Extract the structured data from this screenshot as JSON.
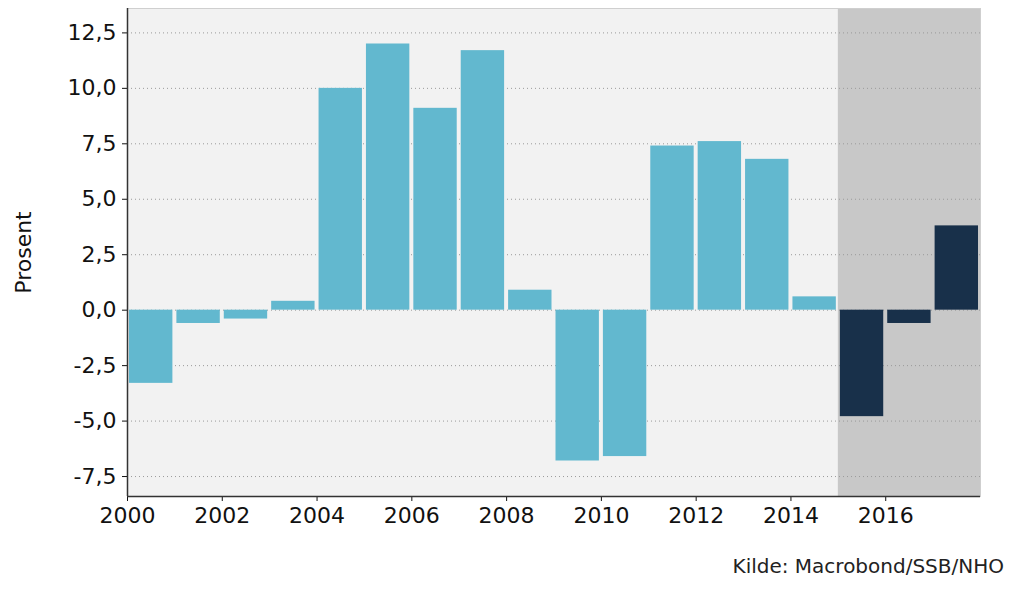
{
  "chart_data": {
    "type": "bar",
    "y_label": "Prosent",
    "caption": "Kilde: Macrobond/SSB/NHO",
    "x": [
      2000,
      2001,
      2002,
      2003,
      2004,
      2005,
      2006,
      2007,
      2008,
      2009,
      2010,
      2011,
      2012,
      2013,
      2014,
      2015,
      2016,
      2017
    ],
    "values": [
      -3.3,
      -0.6,
      -0.4,
      0.4,
      10.0,
      12.0,
      9.1,
      11.7,
      0.9,
      -6.8,
      -6.6,
      7.4,
      7.6,
      6.8,
      0.6,
      -4.8,
      -0.6,
      3.8
    ],
    "colors": [
      "#62b8cf",
      "#62b8cf",
      "#62b8cf",
      "#62b8cf",
      "#62b8cf",
      "#62b8cf",
      "#62b8cf",
      "#62b8cf",
      "#62b8cf",
      "#62b8cf",
      "#62b8cf",
      "#62b8cf",
      "#62b8cf",
      "#62b8cf",
      "#62b8cf",
      "#18304a",
      "#18304a",
      "#18304a"
    ],
    "highlight_x": [
      2015,
      2018
    ],
    "xlim": [
      2000,
      2018
    ],
    "xticks": [
      2000,
      2002,
      2004,
      2006,
      2008,
      2010,
      2012,
      2014,
      2016
    ],
    "ylim": [
      -8.4,
      13.6
    ],
    "yticks": [
      {
        "value": -7.5,
        "label": "-7,5"
      },
      {
        "value": -5.0,
        "label": "-5,0"
      },
      {
        "value": -2.5,
        "label": "-2,5"
      },
      {
        "value": 0.0,
        "label": "0,0"
      },
      {
        "value": 2.5,
        "label": "2,5"
      },
      {
        "value": 5.0,
        "label": "5,0"
      },
      {
        "value": 7.5,
        "label": "7,5"
      },
      {
        "value": 10.0,
        "label": "10,0"
      },
      {
        "value": 12.5,
        "label": "12,5"
      }
    ],
    "grid": true
  }
}
